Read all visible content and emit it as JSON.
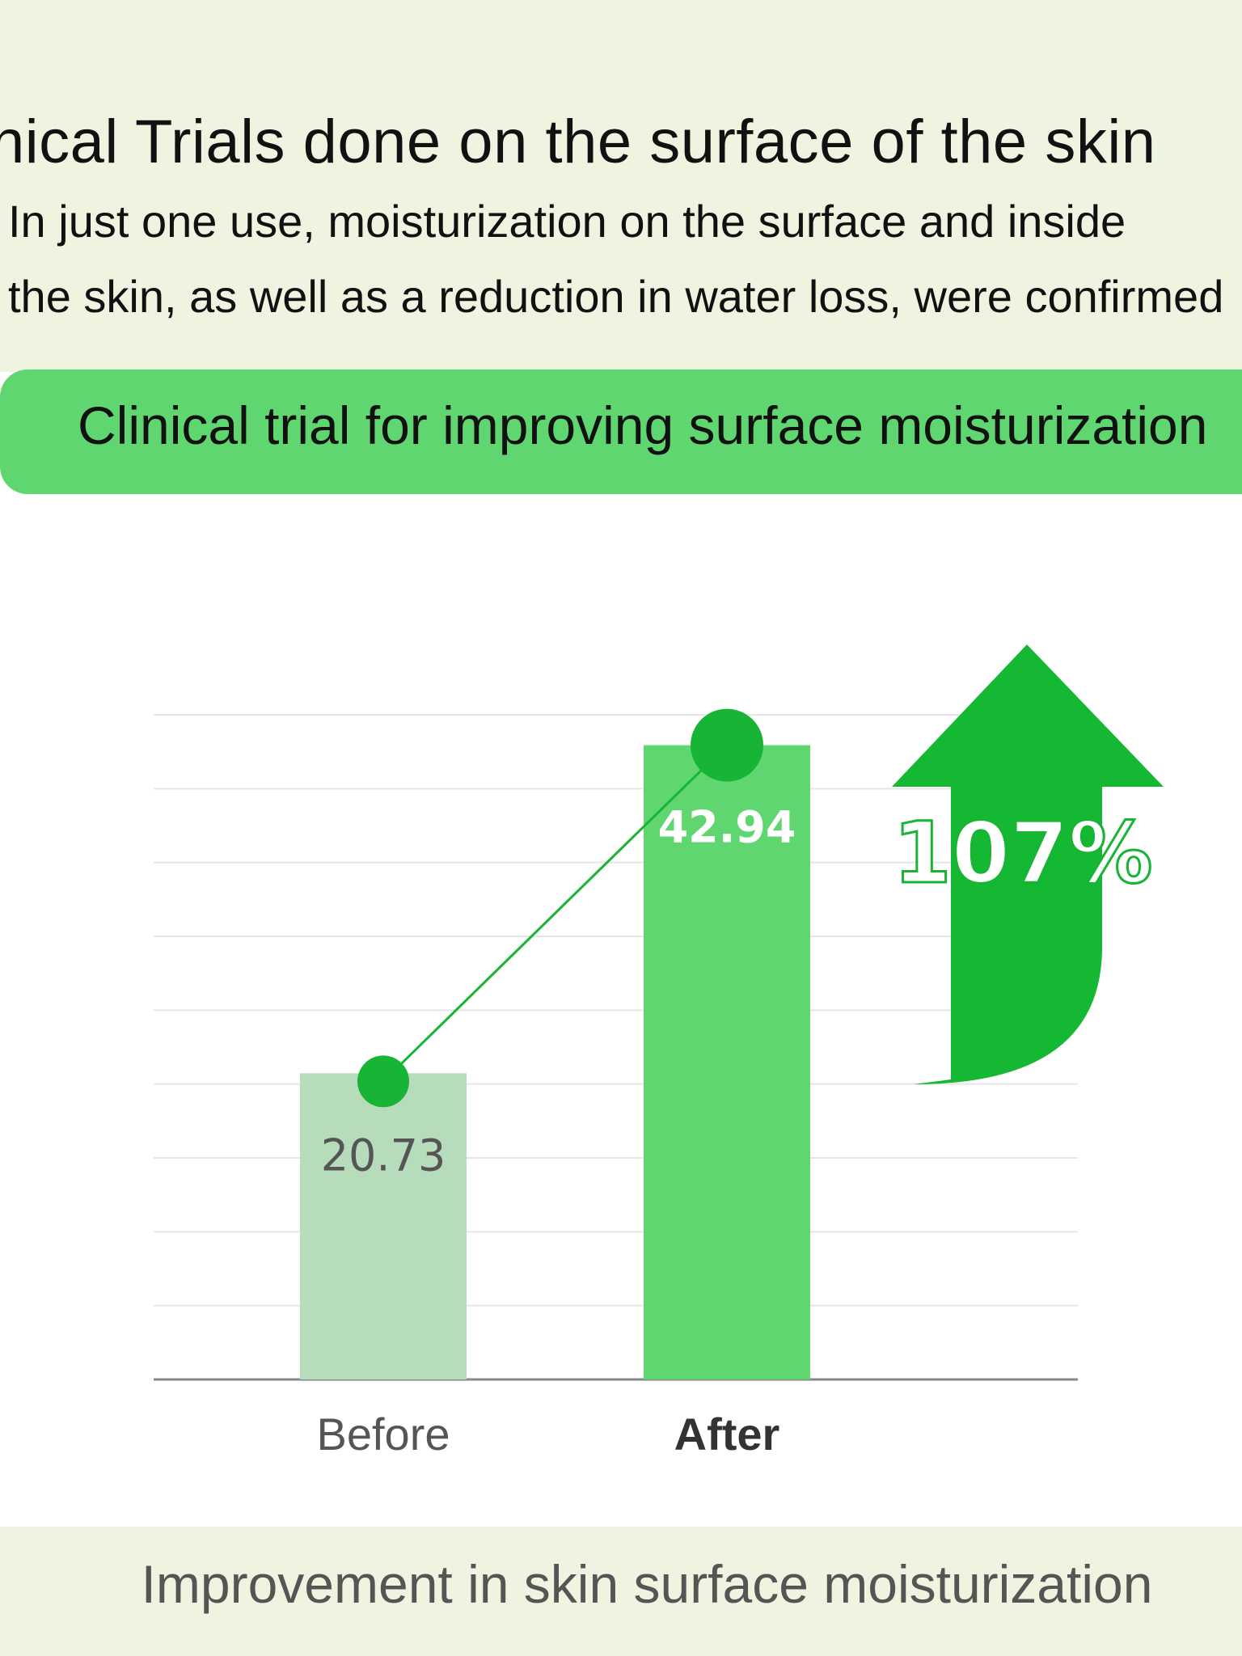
{
  "header": {
    "headline": "nical Trials done on the surface of the skin",
    "subtext_line1": "In just one use, moisturization on the surface and inside",
    "subtext_line2": "the skin, as well as a reduction in water loss, were confirmed"
  },
  "banner": {
    "title": "Clinical trial for improving surface moisturization"
  },
  "chart_data": {
    "type": "bar",
    "categories": [
      "Before",
      "After"
    ],
    "values": [
      20.73,
      42.94
    ],
    "value_labels": [
      "20.73",
      "42.94"
    ],
    "title": "Clinical trial for improving surface moisturization",
    "caption": "Improvement in skin surface moisturization",
    "ylim": [
      0,
      45
    ],
    "grid": true,
    "trend_line": true,
    "increase_label": "107%",
    "colors": {
      "before_bar": "#b7dcbb",
      "after_bar": "#5fd670",
      "marker": "#18b436",
      "arrow": "#14b832",
      "grid": "#e6e6e6",
      "axis": "#888888",
      "before_label": "#555555",
      "after_label": "#ffffff",
      "before_category": "#555555",
      "after_category": "#333333"
    }
  },
  "footer": {
    "caption": "Improvement in skin surface moisturization"
  }
}
